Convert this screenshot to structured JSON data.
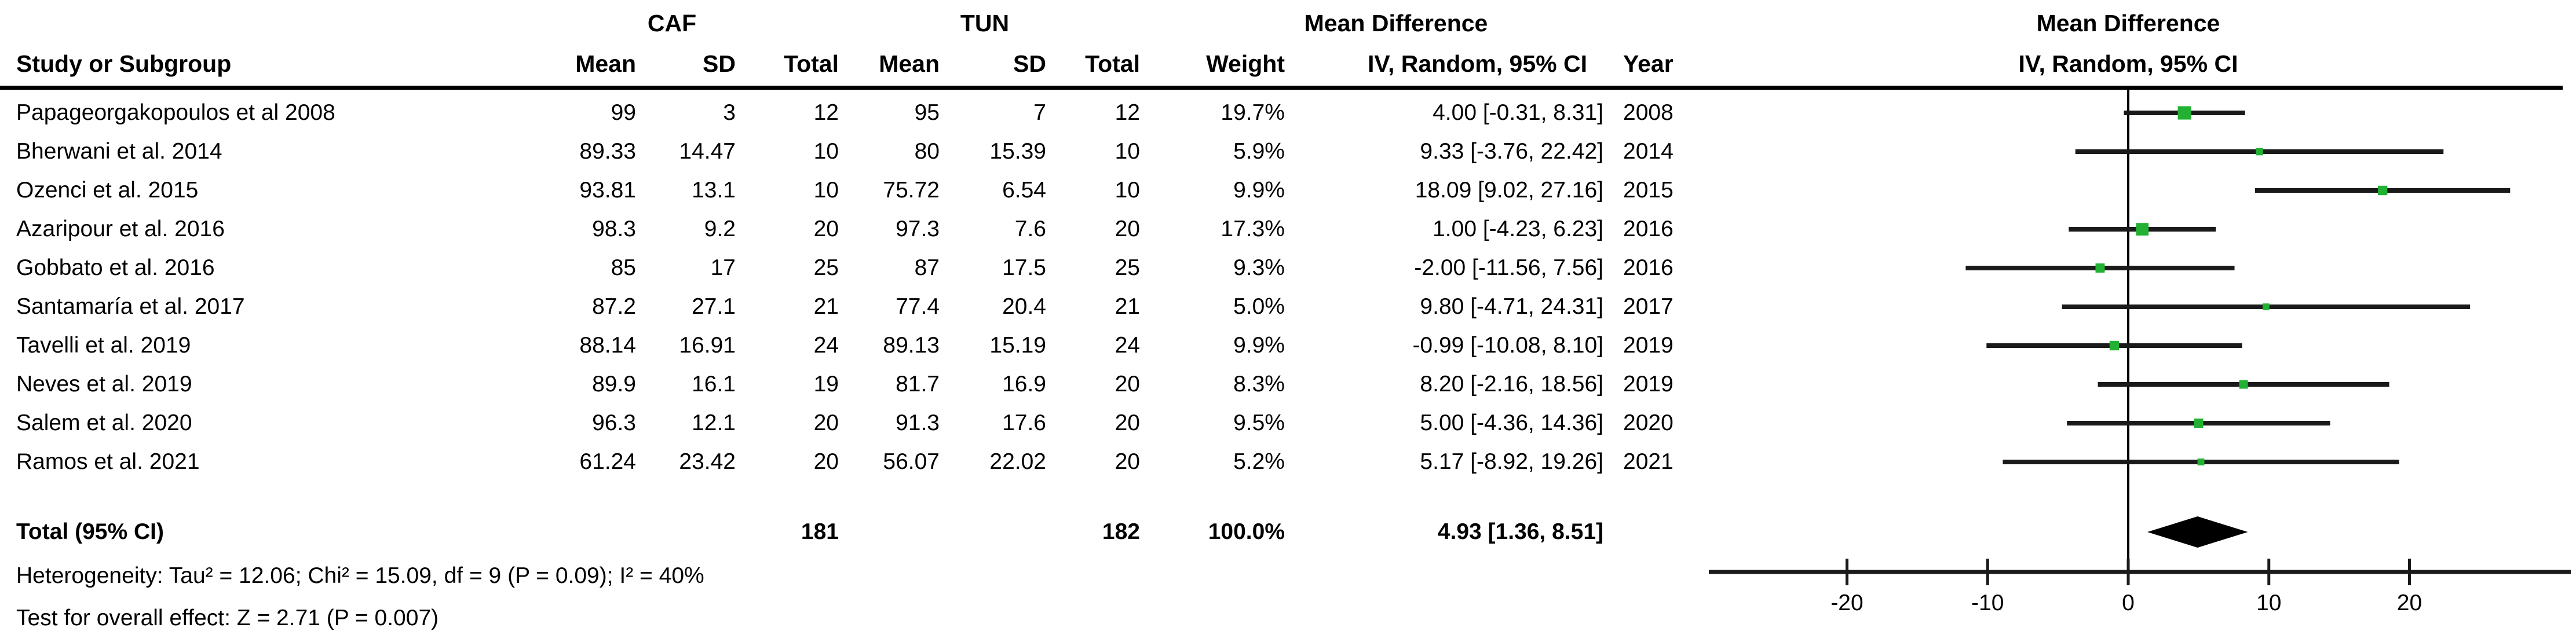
{
  "table": {
    "study_col_header": "Study or Subgroup",
    "group1_label": "CAF",
    "group2_label": "TUN",
    "sub_headers": {
      "mean": "Mean",
      "sd": "SD",
      "total": "Total",
      "weight": "Weight",
      "year": "Year"
    },
    "effect_header": "Mean Difference",
    "effect_subheader": "IV, Random, 95% CI",
    "studies": [
      {
        "name": "Papageorgakopoulos et al 2008",
        "caf_mean": "99",
        "caf_sd": "3",
        "caf_total": "12",
        "tun_mean": "95",
        "tun_sd": "7",
        "tun_total": "12",
        "weight": "19.7%",
        "ci": "4.00 [-0.31, 8.31]",
        "year": "2008"
      },
      {
        "name": "Bherwani et al. 2014",
        "caf_mean": "89.33",
        "caf_sd": "14.47",
        "caf_total": "10",
        "tun_mean": "80",
        "tun_sd": "15.39",
        "tun_total": "10",
        "weight": "5.9%",
        "ci": "9.33 [-3.76, 22.42]",
        "year": "2014"
      },
      {
        "name": "Ozenci et al. 2015",
        "caf_mean": "93.81",
        "caf_sd": "13.1",
        "caf_total": "10",
        "tun_mean": "75.72",
        "tun_sd": "6.54",
        "tun_total": "10",
        "weight": "9.9%",
        "ci": "18.09 [9.02, 27.16]",
        "year": "2015"
      },
      {
        "name": "Azaripour et al. 2016",
        "caf_mean": "98.3",
        "caf_sd": "9.2",
        "caf_total": "20",
        "tun_mean": "97.3",
        "tun_sd": "7.6",
        "tun_total": "20",
        "weight": "17.3%",
        "ci": "1.00 [-4.23, 6.23]",
        "year": "2016"
      },
      {
        "name": "Gobbato et al. 2016",
        "caf_mean": "85",
        "caf_sd": "17",
        "caf_total": "25",
        "tun_mean": "87",
        "tun_sd": "17.5",
        "tun_total": "25",
        "weight": "9.3%",
        "ci": "-2.00 [-11.56, 7.56]",
        "year": "2016"
      },
      {
        "name": "Santamaría et al. 2017",
        "caf_mean": "87.2",
        "caf_sd": "27.1",
        "caf_total": "21",
        "tun_mean": "77.4",
        "tun_sd": "20.4",
        "tun_total": "21",
        "weight": "5.0%",
        "ci": "9.80 [-4.71, 24.31]",
        "year": "2017"
      },
      {
        "name": "Tavelli et al. 2019",
        "caf_mean": "88.14",
        "caf_sd": "16.91",
        "caf_total": "24",
        "tun_mean": "89.13",
        "tun_sd": "15.19",
        "tun_total": "24",
        "weight": "9.9%",
        "ci": "-0.99 [-10.08, 8.10]",
        "year": "2019"
      },
      {
        "name": "Neves et al. 2019",
        "caf_mean": "89.9",
        "caf_sd": "16.1",
        "caf_total": "19",
        "tun_mean": "81.7",
        "tun_sd": "16.9",
        "tun_total": "20",
        "weight": "8.3%",
        "ci": "8.20 [-2.16, 18.56]",
        "year": "2019"
      },
      {
        "name": "Salem et al. 2020",
        "caf_mean": "96.3",
        "caf_sd": "12.1",
        "caf_total": "20",
        "tun_mean": "91.3",
        "tun_sd": "17.6",
        "tun_total": "20",
        "weight": "9.5%",
        "ci": "5.00 [-4.36, 14.36]",
        "year": "2020"
      },
      {
        "name": "Ramos et al. 2021",
        "caf_mean": "61.24",
        "caf_sd": "23.42",
        "caf_total": "20",
        "tun_mean": "56.07",
        "tun_sd": "22.02",
        "tun_total": "20",
        "weight": "5.2%",
        "ci": "5.17 [-8.92, 19.26]",
        "year": "2021"
      }
    ],
    "total_row": {
      "label": "Total (95% CI)",
      "caf_total": "181",
      "tun_total": "182",
      "weight": "100.0%",
      "ci": "4.93 [1.36, 8.51]"
    },
    "heterogeneity": "Heterogeneity: Tau² = 12.06; Chi² = 15.09, df = 9 (P = 0.09); I² = 40%",
    "overall_effect": "Test for overall effect: Z = 2.71 (P = 0.007)"
  },
  "chart_data": {
    "type": "forest",
    "title": "Mean Difference",
    "subtitle": "IV, Random, 95% CI",
    "axis_ticks": [
      -20,
      -10,
      0,
      10,
      20
    ],
    "xlim": [
      -30,
      31
    ],
    "zero_line": 0,
    "marker_color": "#22b133",
    "line_color": "#1a1a1a",
    "studies": [
      {
        "name": "Papageorgakopoulos et al 2008",
        "md": 4.0,
        "lo": -0.31,
        "hi": 8.31,
        "weight": 19.7
      },
      {
        "name": "Bherwani et al. 2014",
        "md": 9.33,
        "lo": -3.76,
        "hi": 22.42,
        "weight": 5.9
      },
      {
        "name": "Ozenci et al. 2015",
        "md": 18.09,
        "lo": 9.02,
        "hi": 27.16,
        "weight": 9.9
      },
      {
        "name": "Azaripour et al. 2016",
        "md": 1.0,
        "lo": -4.23,
        "hi": 6.23,
        "weight": 17.3
      },
      {
        "name": "Gobbato et al. 2016",
        "md": -2.0,
        "lo": -11.56,
        "hi": 7.56,
        "weight": 9.3
      },
      {
        "name": "Santamaría et al. 2017",
        "md": 9.8,
        "lo": -4.71,
        "hi": 24.31,
        "weight": 5.0
      },
      {
        "name": "Tavelli et al. 2019",
        "md": -0.99,
        "lo": -10.08,
        "hi": 8.1,
        "weight": 9.9
      },
      {
        "name": "Neves et al. 2019",
        "md": 8.2,
        "lo": -2.16,
        "hi": 18.56,
        "weight": 8.3
      },
      {
        "name": "Salem et al. 2020",
        "md": 5.0,
        "lo": -4.36,
        "hi": 14.36,
        "weight": 9.5
      },
      {
        "name": "Ramos et al. 2021",
        "md": 5.17,
        "lo": -8.92,
        "hi": 19.26,
        "weight": 5.2
      }
    ],
    "total": {
      "md": 4.93,
      "lo": 1.36,
      "hi": 8.51
    }
  }
}
